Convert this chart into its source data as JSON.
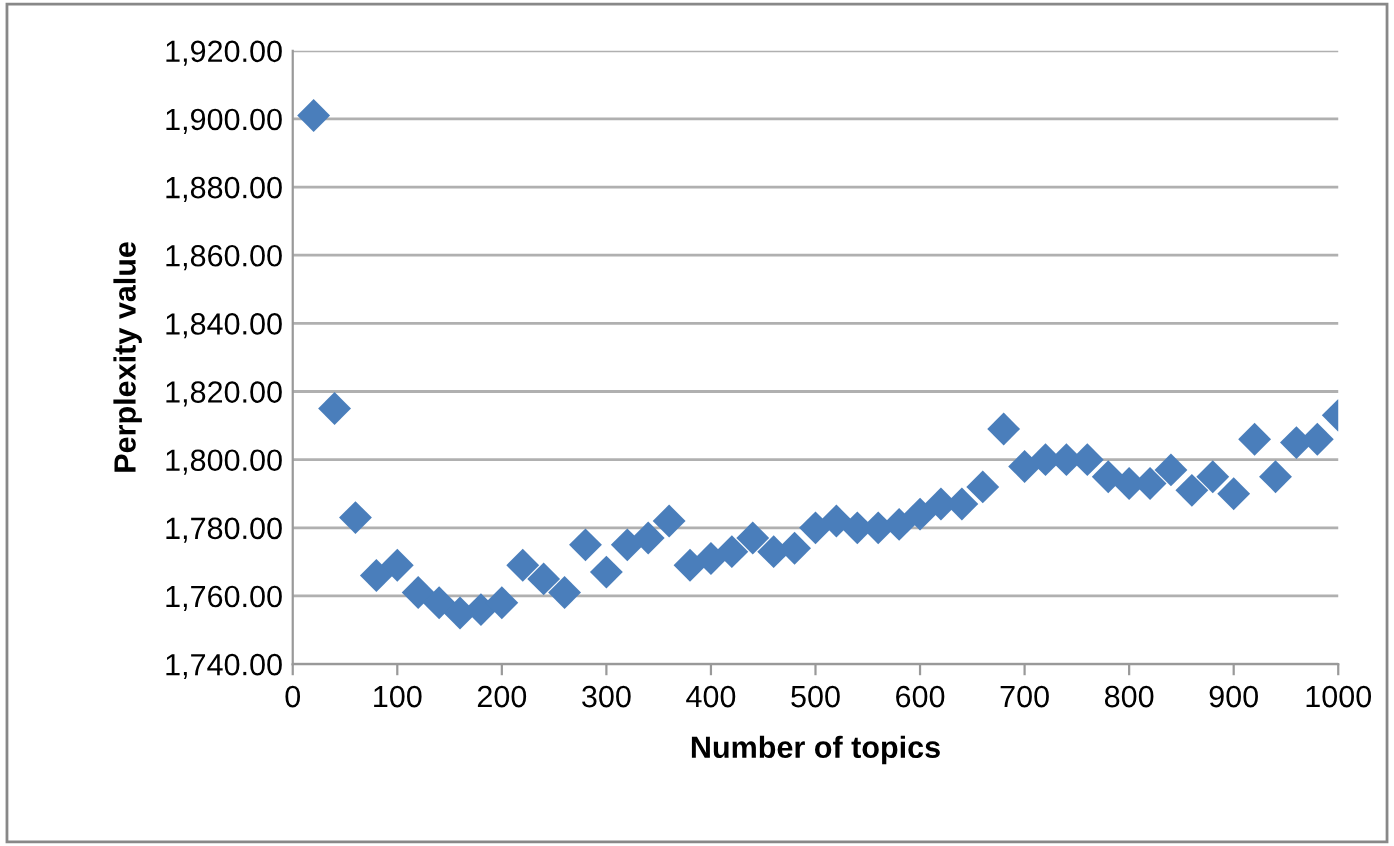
{
  "chart_data": {
    "type": "scatter",
    "xlabel": "Number of topics",
    "ylabel": "Perplexity value",
    "x": [
      20,
      40,
      60,
      80,
      100,
      120,
      140,
      160,
      180,
      200,
      220,
      240,
      260,
      280,
      300,
      320,
      340,
      360,
      380,
      400,
      420,
      440,
      460,
      480,
      500,
      520,
      540,
      560,
      580,
      600,
      620,
      640,
      660,
      680,
      700,
      720,
      740,
      760,
      780,
      800,
      820,
      840,
      860,
      880,
      900,
      920,
      940,
      960,
      980,
      1000
    ],
    "series": [
      {
        "color": "#4a7ebb",
        "values": [
          1901,
          1815,
          1783,
          1766,
          1769,
          1761,
          1758,
          1755,
          1756,
          1758,
          1769,
          1765,
          1761,
          1775,
          1767,
          1775,
          1777,
          1782,
          1769,
          1771,
          1773,
          1777,
          1773,
          1774,
          1780,
          1782,
          1780,
          1780,
          1781,
          1784,
          1787,
          1787,
          1792,
          1809,
          1798,
          1800,
          1800,
          1800,
          1795,
          1793,
          1793,
          1797,
          1791,
          1795,
          1790,
          1806,
          1795,
          1805,
          1806,
          1813
        ]
      }
    ],
    "xlim": [
      0,
      1000
    ],
    "xticks": [
      0,
      100,
      200,
      300,
      400,
      500,
      600,
      700,
      800,
      900,
      1000
    ],
    "ylim": [
      1740,
      1920
    ],
    "yticks": [
      {
        "value": 1740,
        "label": "1,740.00"
      },
      {
        "value": 1760,
        "label": "1,760.00"
      },
      {
        "value": 1780,
        "label": "1,780.00"
      },
      {
        "value": 1800,
        "label": "1,800.00"
      },
      {
        "value": 1820,
        "label": "1,820.00"
      },
      {
        "value": 1840,
        "label": "1,840.00"
      },
      {
        "value": 1860,
        "label": "1,860.00"
      },
      {
        "value": 1880,
        "label": "1,880.00"
      },
      {
        "value": 1900,
        "label": "1,900.00"
      },
      {
        "value": 1920,
        "label": "1,920.00"
      }
    ],
    "grid": "y",
    "marker": "diamond"
  }
}
